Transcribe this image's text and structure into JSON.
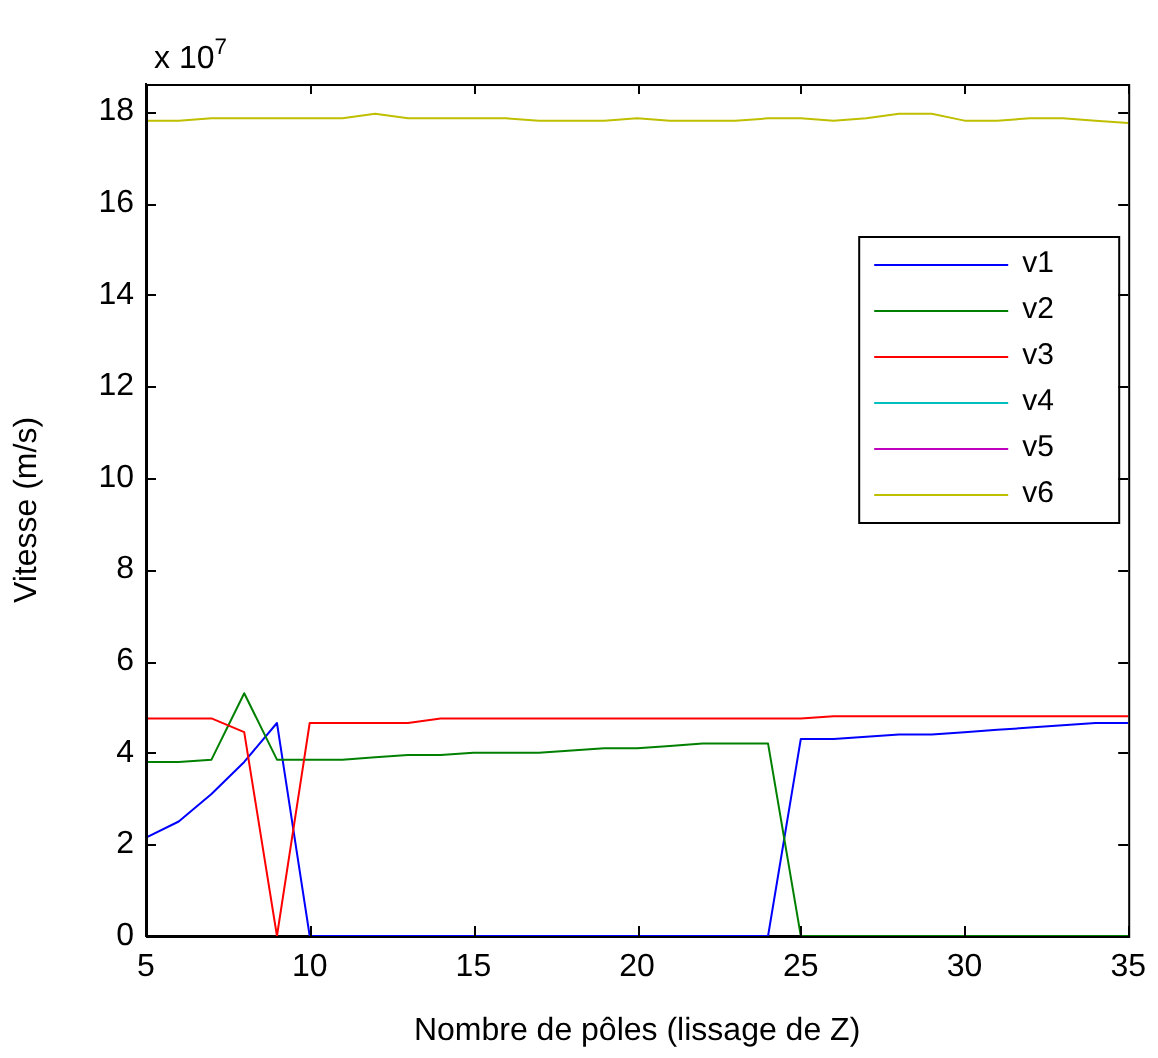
{
  "chart_data": {
    "type": "line",
    "xlabel": "Nombre de pôles (lissage de Z)",
    "ylabel": "Vitesse (m/s)",
    "annotations": [
      "x 10$^{7}$"
    ],
    "x": [
      5,
      6,
      7,
      8,
      9,
      10,
      11,
      12,
      13,
      14,
      15,
      16,
      17,
      18,
      19,
      20,
      21,
      22,
      23,
      24,
      25,
      26,
      27,
      28,
      29,
      30,
      31,
      32,
      33,
      34,
      35
    ],
    "series": [
      {
        "name": "v1",
        "color": "#0000ff",
        "values": [
          2.15,
          2.5,
          3.1,
          3.8,
          4.65,
          0,
          0,
          0,
          0,
          0,
          0,
          0,
          0,
          0,
          0,
          0,
          0,
          0,
          0,
          0,
          4.3,
          4.3,
          4.35,
          4.4,
          4.4,
          4.45,
          4.5,
          4.55,
          4.6,
          4.65,
          4.65
        ]
      },
      {
        "name": "v2",
        "color": "#008000",
        "values": [
          3.8,
          3.8,
          3.85,
          5.3,
          3.85,
          3.85,
          3.85,
          3.9,
          3.95,
          3.95,
          4.0,
          4.0,
          4.0,
          4.05,
          4.1,
          4.1,
          4.15,
          4.2,
          4.2,
          4.2,
          0,
          0,
          0,
          0,
          0,
          0,
          0,
          0,
          0,
          0,
          0
        ]
      },
      {
        "name": "v3",
        "color": "#ff0000",
        "values": [
          4.75,
          4.75,
          4.75,
          4.45,
          0,
          4.65,
          4.65,
          4.65,
          4.65,
          4.75,
          4.75,
          4.75,
          4.75,
          4.75,
          4.75,
          4.75,
          4.75,
          4.75,
          4.75,
          4.75,
          4.75,
          4.8,
          4.8,
          4.8,
          4.8,
          4.8,
          4.8,
          4.8,
          4.8,
          4.8,
          4.8
        ]
      },
      {
        "name": "v4",
        "color": "#00bfbf",
        "values": [
          null,
          null,
          null,
          null,
          null,
          null,
          null,
          null,
          null,
          null,
          null,
          null,
          null,
          null,
          null,
          null,
          null,
          null,
          null,
          null,
          null,
          null,
          null,
          null,
          null,
          null,
          null,
          null,
          null,
          null,
          null
        ]
      },
      {
        "name": "v5",
        "color": "#bf00bf",
        "values": [
          null,
          null,
          null,
          null,
          null,
          null,
          null,
          null,
          null,
          null,
          null,
          null,
          null,
          null,
          null,
          null,
          null,
          null,
          null,
          null,
          null,
          null,
          null,
          null,
          null,
          null,
          null,
          null,
          null,
          null,
          null
        ]
      },
      {
        "name": "v6",
        "color": "#bfbf00",
        "values": [
          17.8,
          17.8,
          17.85,
          17.85,
          17.85,
          17.85,
          17.85,
          17.95,
          17.85,
          17.85,
          17.85,
          17.85,
          17.8,
          17.8,
          17.8,
          17.85,
          17.8,
          17.8,
          17.8,
          17.85,
          17.85,
          17.8,
          17.85,
          17.95,
          17.95,
          17.8,
          17.8,
          17.85,
          17.85,
          17.8,
          17.75
        ]
      }
    ],
    "xlim": [
      5,
      35
    ],
    "xticks": [
      5,
      10,
      15,
      20,
      25,
      30,
      35
    ],
    "ylim": [
      0,
      18.6
    ],
    "yticks": [
      0,
      2,
      4,
      6,
      8,
      10,
      12,
      14,
      16,
      18
    ],
    "grid": false,
    "legend": "top right",
    "marker": "none",
    "line_style": "solid"
  }
}
